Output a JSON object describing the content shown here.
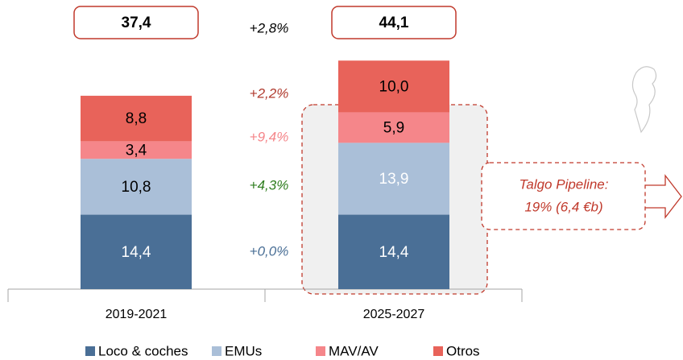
{
  "chart_data": {
    "type": "stacked-bar",
    "categories": [
      "2019-2021",
      "2025-2027"
    ],
    "series": [
      {
        "name": "Loco & coches",
        "color": "#4a6f96",
        "values": [
          14.4,
          14.4
        ],
        "value_labels": [
          "14,4",
          "14,4"
        ]
      },
      {
        "name": "EMUs",
        "color": "#aabfd8",
        "values": [
          10.8,
          13.9
        ],
        "value_labels": [
          "10,8",
          "13,9"
        ]
      },
      {
        "name": "MAV/AV",
        "color": "#f5868a",
        "values": [
          3.4,
          5.9
        ],
        "value_labels": [
          "3,4",
          "5,9"
        ]
      },
      {
        "name": "Otros",
        "color": "#e8635a",
        "values": [
          8.8,
          10.0
        ],
        "value_labels": [
          "8,8",
          "10,0"
        ]
      }
    ],
    "totals": {
      "values": [
        37.4,
        44.1
      ],
      "value_labels": [
        "37,4",
        "44,1"
      ]
    },
    "growth": [
      {
        "text": "+2,8%",
        "color": "#000000"
      },
      {
        "text": "+2,2%",
        "color": "#b03a2e"
      },
      {
        "text": "+9,4%",
        "color": "#f5868a"
      },
      {
        "text": "+4,3%",
        "color": "#2e7d1e"
      },
      {
        "text": "+0,0%",
        "color": "#4a6f96"
      }
    ],
    "pipeline_note": [
      "Talgo Pipeline:",
      "19% (6,4 €b)"
    ]
  }
}
